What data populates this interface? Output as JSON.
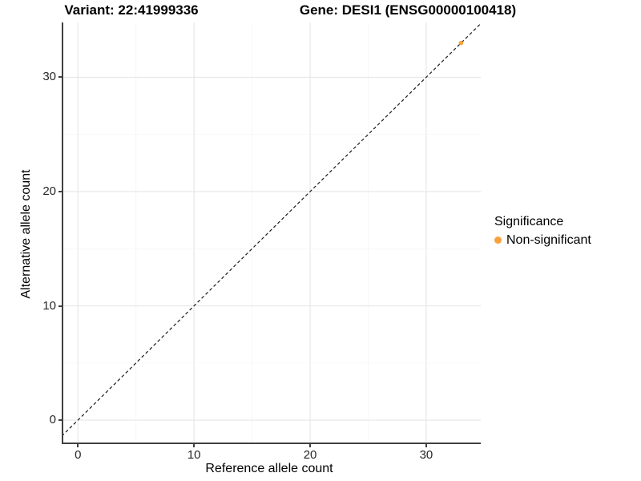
{
  "chart_data": {
    "type": "scatter",
    "title_left": "Variant: 22:41999336",
    "title_right": "Gene: DESI1 (ENSG00000100418)",
    "xlabel": "Reference allele count",
    "ylabel": "Alternative allele count",
    "xlim": [
      -1.4,
      34.7
    ],
    "ylim": [
      -2.1,
      34.8
    ],
    "xticks": [
      0,
      10,
      20,
      30
    ],
    "yticks": [
      0,
      10,
      20,
      30
    ],
    "minor_step": 5,
    "grid": true,
    "points": [
      {
        "x": 33,
        "y": 33,
        "series": "Non-significant"
      }
    ],
    "reference_line": {
      "type": "identity",
      "slope": 1,
      "intercept": 0,
      "style": "dashed",
      "color": "#1a1a1a"
    },
    "legend": {
      "title": "Significance",
      "position": "right",
      "entries": [
        {
          "label": "Non-significant",
          "color": "#F9A13B"
        }
      ]
    },
    "colors": {
      "point": "#F9A13B",
      "grid_major": "#E7E7E7",
      "grid_minor": "#F4F4F4",
      "axis_line": "#404040",
      "background": "#FFFFFF"
    }
  }
}
